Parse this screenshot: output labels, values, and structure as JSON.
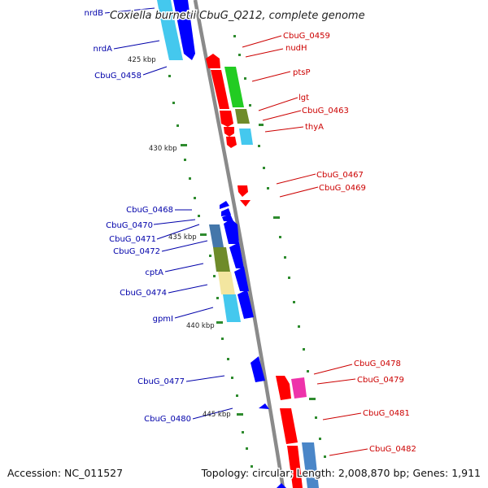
{
  "title": "Coxiella burnetii CbuG_Q212, complete genome",
  "footer": {
    "accession": "Accession: NC_011527",
    "topology": "Topology: circular; Length: 2,008,870 bp; Genes: 1,911"
  },
  "colors": {
    "backbone": "#7f7f7f",
    "tick": "#1f7a1f",
    "forward_label": "#cc0000",
    "reverse_label": "#0000aa",
    "forward_gene": "#ff0000",
    "reverse_gene": "#0000ff"
  },
  "scale_labels": [
    "425 kbp",
    "430 kbp",
    "435 kbp",
    "440 kbp",
    "445 kbp"
  ],
  "forward_labels": [
    "CbuG_0459",
    "nudH",
    "ptsP",
    "lgt",
    "CbuG_0463",
    "thyA",
    "CbuG_0467",
    "CbuG_0469",
    "CbuG_0478",
    "CbuG_0479",
    "CbuG_0481",
    "CbuG_0482"
  ],
  "reverse_labels": [
    "nrdB",
    "nrdA",
    "CbuG_0458",
    "CbuG_0468",
    "CbuG_0470",
    "CbuG_0471",
    "CbuG_0472",
    "cptA",
    "CbuG_0474",
    "gpmI",
    "CbuG_0477",
    "CbuG_0480"
  ]
}
